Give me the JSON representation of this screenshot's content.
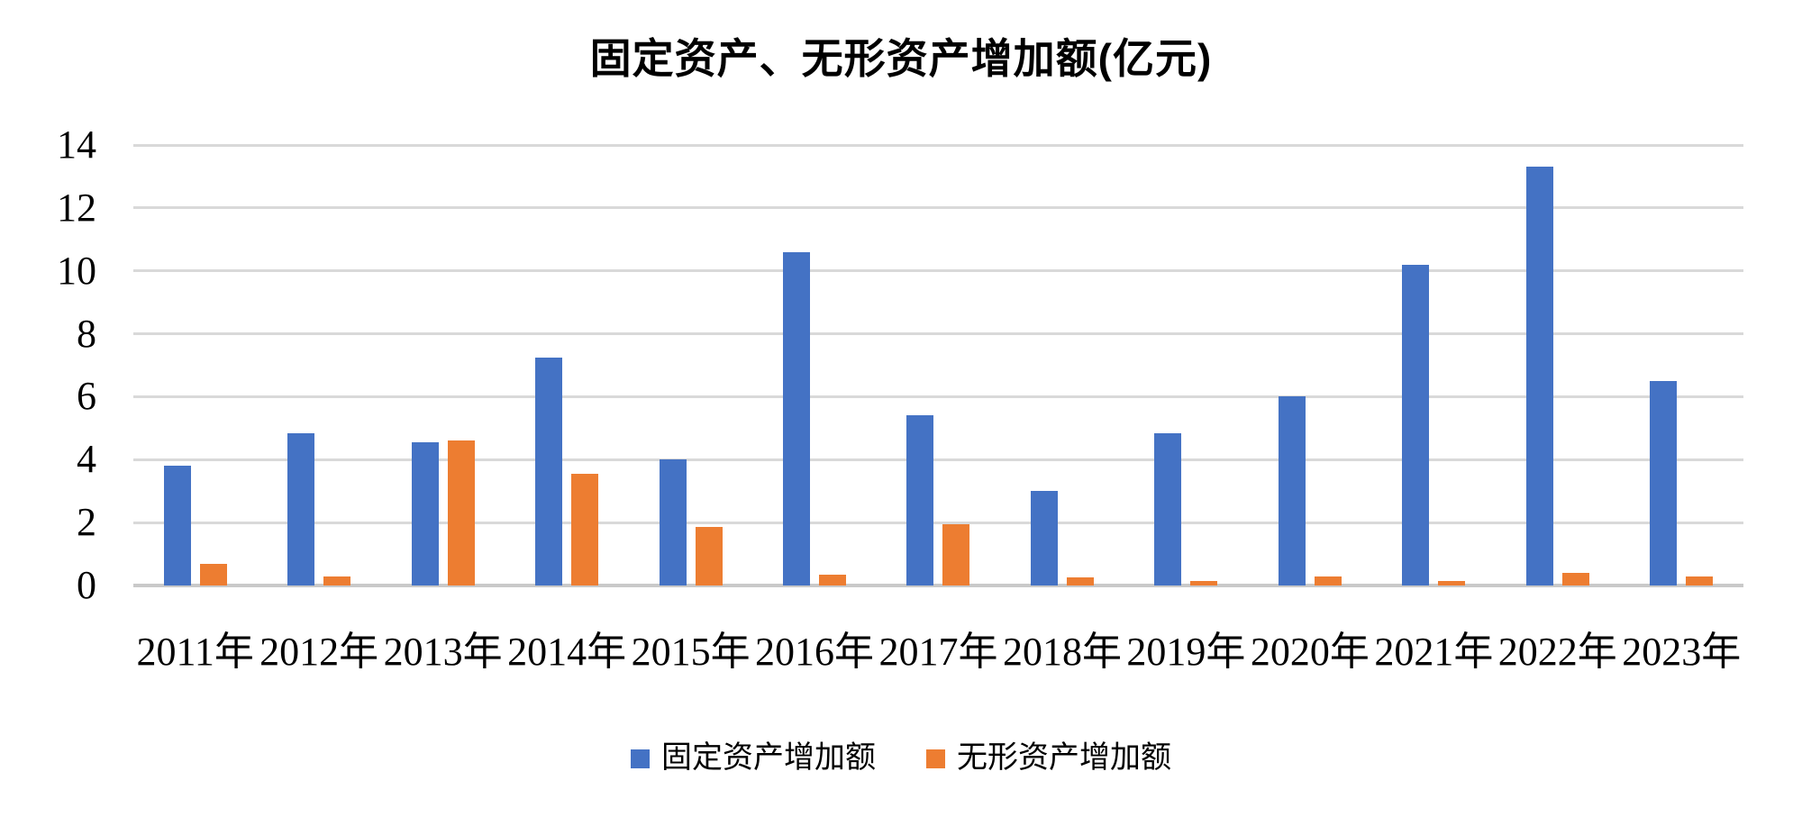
{
  "chart_data": {
    "type": "bar",
    "title": "固定资产、无形资产增加额(亿元)",
    "categories": [
      "2011年",
      "2012年",
      "2013年",
      "2014年",
      "2015年",
      "2016年",
      "2017年",
      "2018年",
      "2019年",
      "2020年",
      "2021年",
      "2022年",
      "2023年"
    ],
    "series": [
      {
        "name": "固定资产增加额",
        "color": "#4472C4",
        "values": [
          3.8,
          4.85,
          4.55,
          7.25,
          4.0,
          10.6,
          5.4,
          3.0,
          4.85,
          6.0,
          10.2,
          13.3,
          6.5
        ]
      },
      {
        "name": "无形资产增加额",
        "color": "#ED7D31",
        "values": [
          0.7,
          0.3,
          4.6,
          3.55,
          1.85,
          0.35,
          1.95,
          0.25,
          0.15,
          0.3,
          0.15,
          0.4,
          0.3
        ]
      }
    ],
    "xlabel": "",
    "ylabel": "",
    "ylim": [
      0,
      14
    ],
    "yticks": [
      0,
      2,
      4,
      6,
      8,
      10,
      12,
      14
    ],
    "grid": "horizontal",
    "legend_position": "bottom"
  },
  "colors": {
    "background": "#FFFFFF",
    "gridline": "#D9D9D9",
    "baseline": "#C9C9C9",
    "text": "#000000"
  }
}
